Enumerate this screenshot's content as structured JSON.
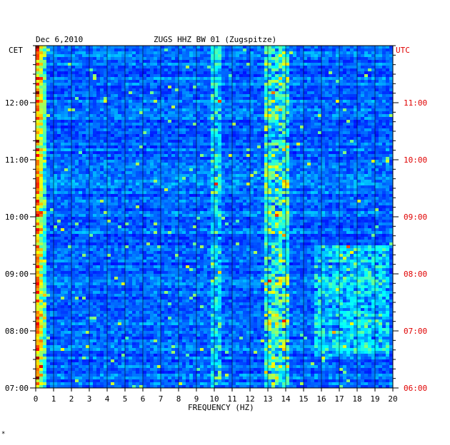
{
  "header": {
    "date": "Dec 6,2010",
    "station": "ZUGS HHZ BW 01 (Zugspitze)"
  },
  "left_axis_title": "CET",
  "right_axis_title": "UTC",
  "footer_mark": "*",
  "colors": {
    "background": "#0000cc",
    "text": "#000000",
    "utc_text": "#e00000"
  },
  "chart_data": {
    "type": "heatmap",
    "title": "ZUGS HHZ BW 01 (Zugspitze)",
    "date": "Dec 6,2010",
    "xlabel": "FREQUENCY (HZ)",
    "xlim": [
      0,
      20
    ],
    "x_ticks": [
      "0",
      "1",
      "2",
      "3",
      "4",
      "5",
      "6",
      "7",
      "8",
      "9",
      "10",
      "11",
      "12",
      "13",
      "14",
      "15",
      "16",
      "17",
      "18",
      "19",
      "20"
    ],
    "y_left_label": "CET",
    "y_right_label": "UTC",
    "y_left_ticks": [
      "07:00",
      "08:00",
      "09:00",
      "10:00",
      "11:00",
      "12:00"
    ],
    "y_right_ticks": [
      "06:00",
      "07:00",
      "08:00",
      "09:00",
      "10:00",
      "11:00"
    ],
    "time_range_cet": [
      "07:00",
      "13:00"
    ],
    "colormap": "jet",
    "grid": true
  }
}
